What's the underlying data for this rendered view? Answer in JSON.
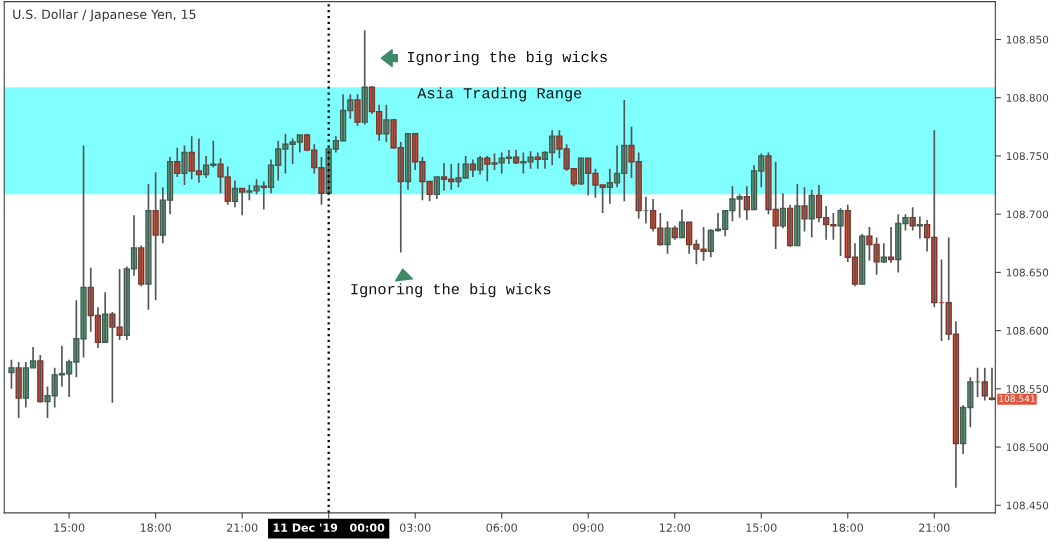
{
  "chart_data": {
    "type": "candlestick",
    "title": "U.S. Dollar / Japanese Yen, 15",
    "colors": [
      "#5fa382",
      "#d8503a",
      "#5fa382",
      "#5fa382",
      "#d8503a",
      "#5fa382",
      "#5fa382",
      "#5fa382",
      "#5fa382",
      "#5fa382",
      "#5fa382",
      "#d8503a",
      "#d8503a",
      "#5fa382",
      "#d8503a",
      "#d8503a",
      "#5fa382",
      "#5fa382",
      "#d8503a",
      "#5fa382",
      "#d8503a",
      "#5fa382",
      "#5fa382",
      "#d8503a",
      "#5fa382",
      "#d8503a",
      "#d8503a",
      "#5fa382",
      "#5fa382",
      "#d8503a",
      "#d8503a",
      "#5fa382",
      "#d8503a",
      "#5fa382",
      "#5fa382",
      "#d8503a",
      "#5fa382",
      "#5fa382",
      "#5fa382",
      "#5fa382",
      "#5fa382",
      "#d8503a",
      "#d8503a",
      "#d8503a",
      "#5fa382",
      "#5fa382",
      "#5fa382",
      "#5fa382",
      "#d8503a",
      "#5fa382",
      "#d8503a",
      "#d8503a",
      "#5fa382",
      "#d8503a",
      "#d8503a",
      "#5fa382",
      "#d8503a",
      "#d8503a",
      "#d8503a",
      "#5fa382",
      "#d8503a",
      "#d8503a",
      "#5fa382",
      "#5fa382",
      "#d8503a",
      "#5fa382",
      "#d8503a",
      "#5fa382",
      "#5fa382",
      "#5fa382",
      "#d8503a",
      "#5fa382",
      "#5fa382",
      "#d8503a",
      "#5fa382",
      "#5fa382",
      "#d8503a",
      "#d8503a",
      "#d8503a",
      "#5fa382",
      "#d8503a",
      "#d8503a",
      "#d8503a",
      "#5fa382",
      "#5fa382",
      "#5fa382",
      "#d8503a",
      "#d8503a",
      "#5fa382",
      "#d8503a",
      "#d8503a",
      "#5fa382",
      "#d8503a",
      "#5fa382",
      "#d8503a",
      "#d8503a",
      "#d8503a",
      "#5fa382",
      "#5fa382",
      "#5fa382",
      "#5fa382",
      "#5fa382",
      "#d8503a",
      "#5fa382",
      "#5fa382",
      "#d8503a",
      "#d8503a",
      "#5fa382",
      "#d8503a",
      "#5fa382",
      "#d8503a",
      "#5fa382",
      "#d8503a",
      "#d8503a",
      "#d8503a",
      "#5fa382",
      "#d8503a",
      "#d8503a",
      "#5fa382",
      "#d8503a",
      "#d8503a",
      "#5fa382",
      "#d8503a",
      "#5fa382",
      "#5fa382",
      "#d8503a",
      "#5fa382",
      "#d8503a",
      "#d8503a",
      "#d8503a",
      "#d8503a",
      "#d8503a",
      "#5fa382",
      "#5fa382",
      "#5fa382",
      "#d8503a",
      "#d8503a"
    ],
    "x": [
      "2019-12-10T13:00",
      "2019-12-10T13:15",
      "2019-12-10T13:30",
      "2019-12-10T13:45",
      "2019-12-10T14:00",
      "2019-12-10T14:15",
      "2019-12-10T14:30",
      "2019-12-10T14:45",
      "2019-12-10T15:00",
      "2019-12-10T15:15",
      "2019-12-10T15:30",
      "2019-12-10T15:45",
      "2019-12-10T16:00",
      "2019-12-10T16:15",
      "2019-12-10T16:30",
      "2019-12-10T16:45",
      "2019-12-10T17:00",
      "2019-12-10T17:15",
      "2019-12-10T17:30",
      "2019-12-10T17:45",
      "2019-12-10T18:00",
      "2019-12-10T18:15",
      "2019-12-10T18:30",
      "2019-12-10T18:45",
      "2019-12-10T19:00",
      "2019-12-10T19:15",
      "2019-12-10T19:30",
      "2019-12-10T19:45",
      "2019-12-10T20:00",
      "2019-12-10T20:15",
      "2019-12-10T20:30",
      "2019-12-10T20:45",
      "2019-12-10T21:00",
      "2019-12-10T21:15",
      "2019-12-10T21:30",
      "2019-12-10T21:45",
      "2019-12-10T22:00",
      "2019-12-10T22:15",
      "2019-12-10T22:30",
      "2019-12-10T22:45",
      "2019-12-10T23:00",
      "2019-12-10T23:15",
      "2019-12-10T23:30",
      "2019-12-10T23:45",
      "2019-12-11T00:00",
      "2019-12-11T00:15",
      "2019-12-11T00:30",
      "2019-12-11T00:45",
      "2019-12-11T01:00",
      "2019-12-11T01:15",
      "2019-12-11T01:30",
      "2019-12-11T01:45",
      "2019-12-11T02:00",
      "2019-12-11T02:15",
      "2019-12-11T02:30",
      "2019-12-11T02:45",
      "2019-12-11T03:00",
      "2019-12-11T03:15",
      "2019-12-11T03:30",
      "2019-12-11T03:45",
      "2019-12-11T04:00",
      "2019-12-11T04:15",
      "2019-12-11T04:30",
      "2019-12-11T04:45",
      "2019-12-11T05:00",
      "2019-12-11T05:15",
      "2019-12-11T05:30",
      "2019-12-11T05:45",
      "2019-12-11T06:00",
      "2019-12-11T06:15",
      "2019-12-11T06:30",
      "2019-12-11T06:45",
      "2019-12-11T07:00",
      "2019-12-11T07:15",
      "2019-12-11T07:30",
      "2019-12-11T07:45",
      "2019-12-11T08:00",
      "2019-12-11T08:15",
      "2019-12-11T08:30",
      "2019-12-11T08:45",
      "2019-12-11T09:00",
      "2019-12-11T09:15",
      "2019-12-11T09:30",
      "2019-12-11T09:45",
      "2019-12-11T10:00",
      "2019-12-11T10:15",
      "2019-12-11T10:30",
      "2019-12-11T10:45",
      "2019-12-11T11:00",
      "2019-12-11T11:15",
      "2019-12-11T11:30",
      "2019-12-11T11:45",
      "2019-12-11T12:00",
      "2019-12-11T12:15",
      "2019-12-11T12:30",
      "2019-12-11T12:45",
      "2019-12-11T13:00",
      "2019-12-11T13:15",
      "2019-12-11T13:30",
      "2019-12-11T13:45",
      "2019-12-11T14:00",
      "2019-12-11T14:15",
      "2019-12-11T14:30",
      "2019-12-11T14:45",
      "2019-12-11T15:00",
      "2019-12-11T15:15",
      "2019-12-11T15:30",
      "2019-12-11T15:45",
      "2019-12-11T16:00",
      "2019-12-11T16:15",
      "2019-12-11T16:30",
      "2019-12-11T16:45",
      "2019-12-11T17:00",
      "2019-12-11T17:15",
      "2019-12-11T17:30",
      "2019-12-11T17:45",
      "2019-12-11T18:00",
      "2019-12-11T18:15",
      "2019-12-11T18:30",
      "2019-12-11T18:45",
      "2019-12-11T19:00",
      "2019-12-11T19:15",
      "2019-12-11T19:30",
      "2019-12-11T19:45",
      "2019-12-11T20:00",
      "2019-12-11T20:15",
      "2019-12-11T20:30",
      "2019-12-11T20:45",
      "2019-12-11T21:00",
      "2019-12-11T21:15",
      "2019-12-11T21:30",
      "2019-12-11T21:45",
      "2019-12-11T22:00",
      "2019-12-11T22:15",
      "2019-12-11T22:30",
      "2019-12-11T22:45",
      "2019-12-11T23:00"
    ],
    "ohlc": [
      [
        108.564,
        108.575,
        108.55,
        108.568
      ],
      [
        108.568,
        108.573,
        108.525,
        108.542
      ],
      [
        108.542,
        108.573,
        108.534,
        108.568
      ],
      [
        108.568,
        108.586,
        108.568,
        108.574
      ],
      [
        108.574,
        108.579,
        108.538,
        108.539
      ],
      [
        108.539,
        108.552,
        108.525,
        108.544
      ],
      [
        108.544,
        108.568,
        108.534,
        108.562
      ],
      [
        108.562,
        108.587,
        108.552,
        108.563
      ],
      [
        108.563,
        108.575,
        108.543,
        108.573
      ],
      [
        108.573,
        108.626,
        108.56,
        108.593
      ],
      [
        108.593,
        108.759,
        108.577,
        108.637
      ],
      [
        108.637,
        108.654,
        108.599,
        108.613
      ],
      [
        108.613,
        108.62,
        108.585,
        108.59
      ],
      [
        108.59,
        108.633,
        108.59,
        108.614
      ],
      [
        108.614,
        108.616,
        108.538,
        108.603
      ],
      [
        108.603,
        108.653,
        108.592,
        108.596
      ],
      [
        108.596,
        108.655,
        108.592,
        108.653
      ],
      [
        108.653,
        108.699,
        108.647,
        108.671
      ],
      [
        108.671,
        108.673,
        108.638,
        108.64
      ],
      [
        108.64,
        108.726,
        108.618,
        108.703
      ],
      [
        108.703,
        108.736,
        108.626,
        108.682
      ],
      [
        108.682,
        108.723,
        108.675,
        108.712
      ],
      [
        108.712,
        108.749,
        108.7,
        108.745
      ],
      [
        108.745,
        108.757,
        108.732,
        108.735
      ],
      [
        108.735,
        108.759,
        108.725,
        108.753
      ],
      [
        108.753,
        108.767,
        108.73,
        108.737
      ],
      [
        108.737,
        108.765,
        108.727,
        108.734
      ],
      [
        108.734,
        108.75,
        108.731,
        108.742
      ],
      [
        108.742,
        108.763,
        108.74,
        108.743
      ],
      [
        108.743,
        108.748,
        108.718,
        108.732
      ],
      [
        108.732,
        108.741,
        108.708,
        108.711
      ],
      [
        108.711,
        108.729,
        108.706,
        108.722
      ],
      [
        108.722,
        108.722,
        108.699,
        108.719
      ],
      [
        108.719,
        108.725,
        108.712,
        108.72
      ],
      [
        108.72,
        108.73,
        108.717,
        108.724
      ],
      [
        108.724,
        108.728,
        108.704,
        108.723
      ],
      [
        108.723,
        108.747,
        108.718,
        108.742
      ],
      [
        108.742,
        108.763,
        108.729,
        108.756
      ],
      [
        108.756,
        108.769,
        108.735,
        108.76
      ],
      [
        108.76,
        108.765,
        108.743,
        108.762
      ],
      [
        108.762,
        108.768,
        108.753,
        108.768
      ],
      [
        108.768,
        108.769,
        108.754,
        108.755
      ],
      [
        108.755,
        108.76,
        108.735,
        108.74
      ],
      [
        108.74,
        108.749,
        108.708,
        108.718
      ],
      [
        108.718,
        108.756,
        108.717,
        108.756
      ],
      [
        108.756,
        108.767,
        108.753,
        108.763
      ],
      [
        108.763,
        108.803,
        108.763,
        108.789
      ],
      [
        108.789,
        108.803,
        108.782,
        108.798
      ],
      [
        108.798,
        108.803,
        108.776,
        108.779
      ],
      [
        108.779,
        108.858,
        108.777,
        108.809
      ],
      [
        108.809,
        108.81,
        108.786,
        108.788
      ],
      [
        108.788,
        108.794,
        108.763,
        108.769
      ],
      [
        108.769,
        108.794,
        108.762,
        108.781
      ],
      [
        108.781,
        108.782,
        108.756,
        108.757
      ],
      [
        108.757,
        108.762,
        108.667,
        108.728
      ],
      [
        108.728,
        108.769,
        108.721,
        108.769
      ],
      [
        108.769,
        108.769,
        108.738,
        108.745
      ],
      [
        108.745,
        108.749,
        108.712,
        108.728
      ],
      [
        108.728,
        108.728,
        108.711,
        108.717
      ],
      [
        108.717,
        108.732,
        108.713,
        108.732
      ],
      [
        108.732,
        108.744,
        108.72,
        108.73
      ],
      [
        108.73,
        108.743,
        108.721,
        108.728
      ],
      [
        108.728,
        108.744,
        108.723,
        108.731
      ],
      [
        108.731,
        108.75,
        108.731,
        108.743
      ],
      [
        108.743,
        108.747,
        108.732,
        108.738
      ],
      [
        108.738,
        108.75,
        108.734,
        108.748
      ],
      [
        108.748,
        108.75,
        108.728,
        108.743
      ],
      [
        108.743,
        108.752,
        108.738,
        108.744
      ],
      [
        108.744,
        108.753,
        108.735,
        108.748
      ],
      [
        108.748,
        108.755,
        108.743,
        108.749
      ],
      [
        108.749,
        108.755,
        108.743,
        108.744
      ],
      [
        108.744,
        108.753,
        108.735,
        108.745
      ],
      [
        108.745,
        108.754,
        108.739,
        108.749
      ],
      [
        108.749,
        108.753,
        108.739,
        108.747
      ],
      [
        108.747,
        108.754,
        108.739,
        108.753
      ],
      [
        108.753,
        108.772,
        108.742,
        108.767
      ],
      [
        108.767,
        108.772,
        108.748,
        108.756
      ],
      [
        108.756,
        108.76,
        108.737,
        108.739
      ],
      [
        108.739,
        108.739,
        108.724,
        108.726
      ],
      [
        108.726,
        108.748,
        108.725,
        108.748
      ],
      [
        108.748,
        108.748,
        108.716,
        108.735
      ],
      [
        108.735,
        108.739,
        108.714,
        108.725
      ],
      [
        108.725,
        108.725,
        108.701,
        108.723
      ],
      [
        108.723,
        108.739,
        108.709,
        108.727
      ],
      [
        108.727,
        108.759,
        108.723,
        108.735
      ],
      [
        108.735,
        108.798,
        108.711,
        108.759
      ],
      [
        108.759,
        108.775,
        108.731,
        108.745
      ],
      [
        108.745,
        108.753,
        108.696,
        108.703
      ],
      [
        108.703,
        108.715,
        108.692,
        108.703
      ],
      [
        108.703,
        108.713,
        108.685,
        108.688
      ],
      [
        108.688,
        108.701,
        108.673,
        108.674
      ],
      [
        108.674,
        108.694,
        108.666,
        108.688
      ],
      [
        108.688,
        108.69,
        108.678,
        108.68
      ],
      [
        108.68,
        108.704,
        108.68,
        108.693
      ],
      [
        108.693,
        108.693,
        108.666,
        108.674
      ],
      [
        108.674,
        108.678,
        108.657,
        108.67
      ],
      [
        108.67,
        108.689,
        108.66,
        108.668
      ],
      [
        108.668,
        108.687,
        108.663,
        108.686
      ],
      [
        108.686,
        108.701,
        108.685,
        108.687
      ],
      [
        108.687,
        108.703,
        108.681,
        108.703
      ],
      [
        108.703,
        108.724,
        108.694,
        108.713
      ],
      [
        108.713,
        108.717,
        108.697,
        108.715
      ],
      [
        108.715,
        108.724,
        108.695,
        108.704
      ],
      [
        108.704,
        108.742,
        108.704,
        108.737
      ],
      [
        108.737,
        108.752,
        108.723,
        108.75
      ],
      [
        108.75,
        108.753,
        108.7,
        108.704
      ],
      [
        108.704,
        108.745,
        108.67,
        108.69
      ],
      [
        108.69,
        108.718,
        108.688,
        108.705
      ],
      [
        108.705,
        108.708,
        108.672,
        108.673
      ],
      [
        108.673,
        108.726,
        108.673,
        108.707
      ],
      [
        108.707,
        108.723,
        108.685,
        108.696
      ],
      [
        108.696,
        108.721,
        108.68,
        108.716
      ],
      [
        108.716,
        108.725,
        108.693,
        108.697
      ],
      [
        108.697,
        108.707,
        108.678,
        108.691
      ],
      [
        108.691,
        108.701,
        108.678,
        108.69
      ],
      [
        108.69,
        108.705,
        108.664,
        108.703
      ],
      [
        108.703,
        108.708,
        108.659,
        108.663
      ],
      [
        108.663,
        108.675,
        108.638,
        108.64
      ],
      [
        108.64,
        108.683,
        108.64,
        108.681
      ],
      [
        108.681,
        108.689,
        108.66,
        108.674
      ],
      [
        108.674,
        108.68,
        108.648,
        108.659
      ],
      [
        108.659,
        108.675,
        108.658,
        108.663
      ],
      [
        108.663,
        108.689,
        108.658,
        108.661
      ],
      [
        108.661,
        108.7,
        108.65,
        108.692
      ],
      [
        108.692,
        108.7,
        108.686,
        108.697
      ],
      [
        108.697,
        108.706,
        108.686,
        108.69
      ],
      [
        108.69,
        108.698,
        108.679,
        108.691
      ],
      [
        108.691,
        108.695,
        108.668,
        108.68
      ],
      [
        108.68,
        108.772,
        108.62,
        108.624
      ],
      [
        108.624,
        108.661,
        108.591,
        108.624
      ],
      [
        108.624,
        108.68,
        108.592,
        108.597
      ],
      [
        108.597,
        108.608,
        108.465,
        108.503
      ],
      [
        108.503,
        108.536,
        108.494,
        108.534
      ],
      [
        108.534,
        108.56,
        108.517,
        108.556
      ],
      [
        108.556,
        108.568,
        108.543,
        108.556
      ],
      [
        108.556,
        108.568,
        108.54,
        108.544
      ],
      [
        108.542,
        108.568,
        108.54,
        108.541
      ]
    ],
    "xlim": [
      "2019-12-10T12:45",
      "2019-12-11T23:07"
    ],
    "xticks": [
      {
        "value": "2019-12-10T15:00",
        "label": "15:00"
      },
      {
        "value": "2019-12-10T18:00",
        "label": "18:00"
      },
      {
        "value": "2019-12-10T21:00",
        "label": "21:00"
      },
      {
        "value": "2019-12-11T00:00",
        "label": "11 Dec '19   00:00"
      },
      {
        "value": "2019-12-11T03:00",
        "label": "03:00"
      },
      {
        "value": "2019-12-11T06:00",
        "label": "06:00"
      },
      {
        "value": "2019-12-11T09:00",
        "label": "09:00"
      },
      {
        "value": "2019-12-11T12:00",
        "label": "12:00"
      },
      {
        "value": "2019-12-11T15:00",
        "label": "15:00"
      },
      {
        "value": "2019-12-11T18:00",
        "label": "18:00"
      },
      {
        "value": "2019-12-11T21:00",
        "label": "21:00"
      }
    ],
    "ylim": [
      108.4435,
      108.8825
    ],
    "yticks": [
      {
        "value": 108.45,
        "label": "108.450"
      },
      {
        "value": 108.5,
        "label": "108.500"
      },
      {
        "value": 108.55,
        "label": "108.550"
      },
      {
        "value": 108.6,
        "label": "108.600"
      },
      {
        "value": 108.65,
        "label": "108.650"
      },
      {
        "value": 108.7,
        "label": "108.700"
      },
      {
        "value": 108.75,
        "label": "108.750"
      },
      {
        "value": 108.8,
        "label": "108.800"
      },
      {
        "value": 108.85,
        "label": "108.850"
      }
    ],
    "ref_lines": [
      {
        "axis": "x",
        "value": "2019-12-11T00:00",
        "color": "#000000",
        "line_style": "dotted"
      }
    ],
    "bands": [
      {
        "axis": "y",
        "from": 108.717,
        "to": 108.809,
        "label": "Asia Trading Range",
        "color": "#00ffff"
      }
    ],
    "annotations": [
      {
        "text": "Ignoring the big wicks",
        "x": "2019-12-11T01:15",
        "y": 108.834
      },
      {
        "text": "Ignoring the big wicks",
        "x": "2019-12-11T02:30",
        "y": 108.667
      },
      {
        "text": "108.541",
        "x": "2019-12-11T23:00",
        "y": 108.541
      }
    ]
  }
}
